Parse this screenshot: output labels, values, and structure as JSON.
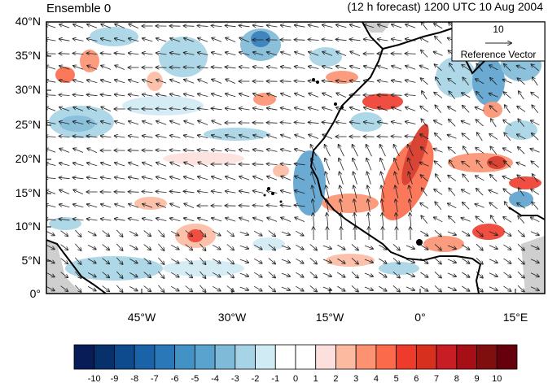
{
  "title_left": "Ensemble 0",
  "title_right": "(12 h forecast) 1200 UTC 10 Aug 2004",
  "reference_vector": {
    "value": "10",
    "label": "Reference Vector"
  },
  "lat_ticks": [
    "40°N",
    "35°N",
    "30°N",
    "25°N",
    "20°N",
    "15°N",
    "10°N",
    "5°N",
    "0°"
  ],
  "lon_ticks": [
    "45°W",
    "30°W",
    "15°W",
    "0°",
    "15°E"
  ],
  "colorbar": {
    "labels": [
      "-10",
      "-9",
      "-8",
      "-7",
      "-6",
      "-5",
      "-4",
      "-3",
      "-2",
      "-1",
      "0",
      "1",
      "2",
      "3",
      "4",
      "5",
      "6",
      "7",
      "8",
      "9",
      "10"
    ],
    "colors": [
      "#081d58",
      "#08306b",
      "#0d4a8e",
      "#1a63a8",
      "#2b78b8",
      "#4292c6",
      "#5ba3cf",
      "#7fbad8",
      "#a6d3e5",
      "#d1ebf5",
      "#ffffff",
      "#ffffff",
      "#fde0dd",
      "#fcbba1",
      "#fc9272",
      "#fb6a4a",
      "#ef3b2c",
      "#d7301f",
      "#c81d25",
      "#a50f15",
      "#7f0f0f",
      "#67000d"
    ]
  },
  "colors": {
    "land_missing": "#cfcfcf",
    "coast": "#000000",
    "arrow": "#222222"
  }
}
